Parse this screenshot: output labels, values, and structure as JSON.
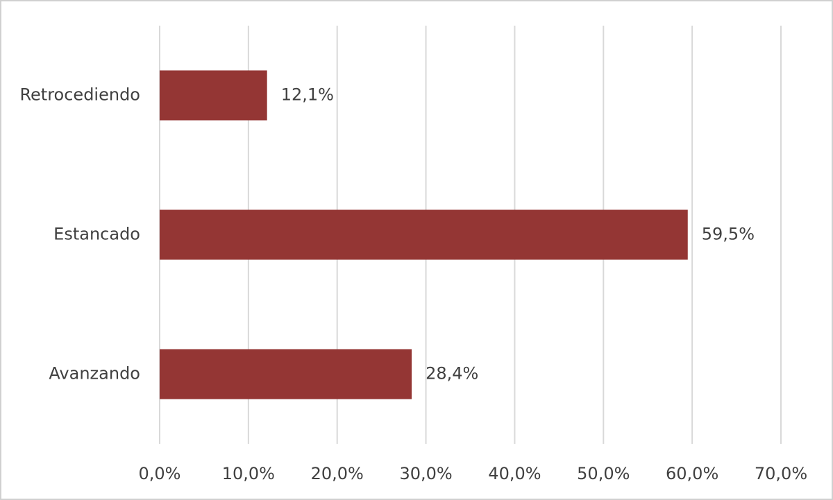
{
  "chart_data": {
    "type": "bar",
    "orientation": "horizontal",
    "categories": [
      "Retrocediendo",
      "Estancado",
      "Avanzando"
    ],
    "values": [
      12.1,
      59.5,
      28.4
    ],
    "value_labels": [
      "12,1%",
      "59,5%",
      "28,4%"
    ],
    "color": "#943634",
    "xlim": [
      0,
      70
    ],
    "xticks": [
      {
        "value": 0,
        "label": "0,0%"
      },
      {
        "value": 10,
        "label": "10,0%"
      },
      {
        "value": 20,
        "label": "20,0%"
      },
      {
        "value": 30,
        "label": "30,0%"
      },
      {
        "value": 40,
        "label": "40,0%"
      },
      {
        "value": 50,
        "label": "50,0%"
      },
      {
        "value": 60,
        "label": "60,0%"
      },
      {
        "value": 70,
        "label": "70,0%"
      }
    ],
    "grid": true
  }
}
